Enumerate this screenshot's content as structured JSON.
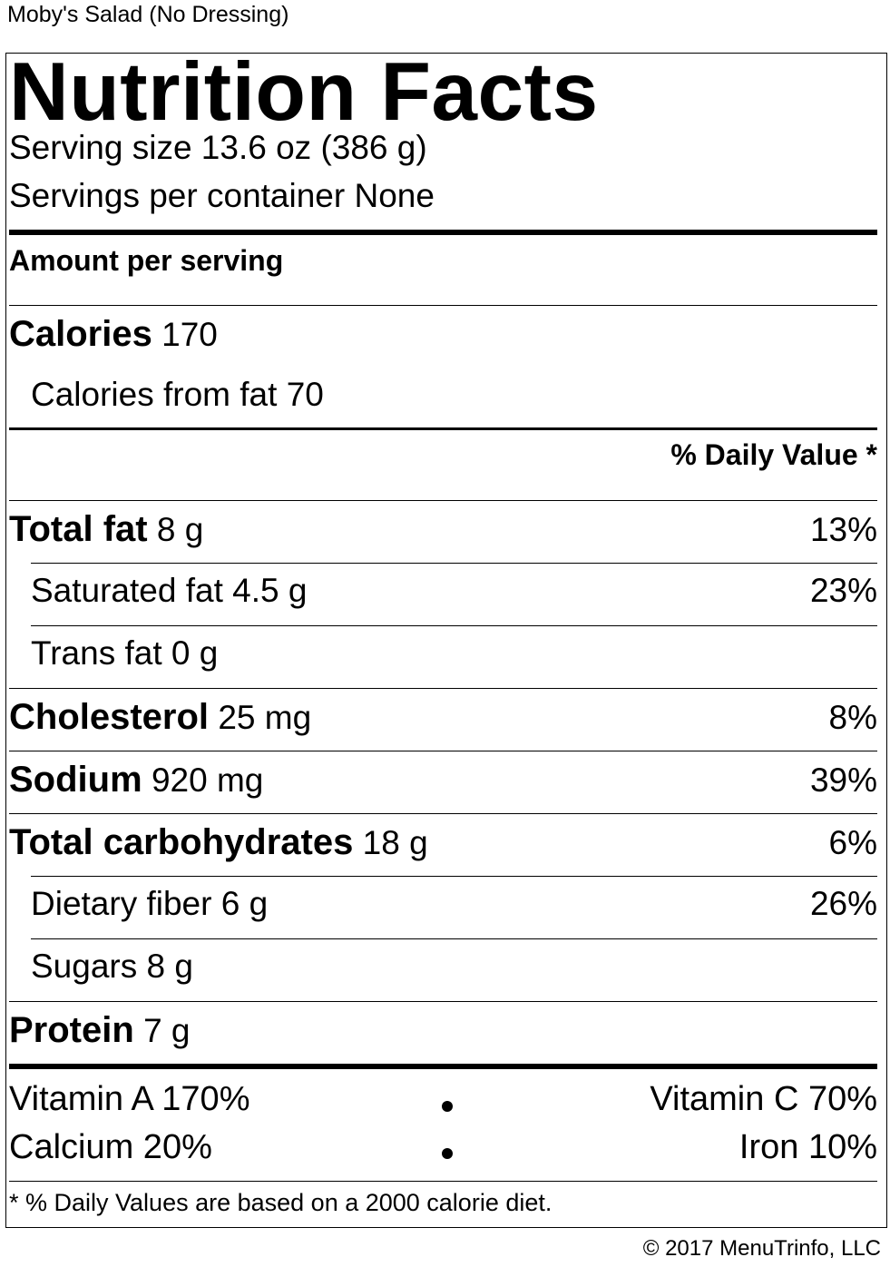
{
  "item_name": "Moby's Salad (No Dressing)",
  "title": "Nutrition Facts",
  "serving_size": "Serving size 13.6 oz (386 g)",
  "servings_per_container": "Servings per container None",
  "amount_per_serving": "Amount per serving",
  "calories": {
    "label": "Calories",
    "value": "170"
  },
  "calories_from_fat": "Calories from fat 70",
  "daily_value_header": "% Daily Value *",
  "nutrients": {
    "total_fat": {
      "label": "Total fat",
      "amount": "8 g",
      "dv": "13%"
    },
    "saturated_fat": {
      "label": "Saturated fat 4.5 g",
      "dv": "23%"
    },
    "trans_fat": {
      "label": "Trans fat 0 g"
    },
    "cholesterol": {
      "label": "Cholesterol",
      "amount": "25 mg",
      "dv": "8%"
    },
    "sodium": {
      "label": "Sodium",
      "amount": "920 mg",
      "dv": "39%"
    },
    "total_carbohydrates": {
      "label": "Total carbohydrates",
      "amount": "18 g",
      "dv": "6%"
    },
    "dietary_fiber": {
      "label": "Dietary fiber 6 g",
      "dv": "26%"
    },
    "sugars": {
      "label": "Sugars 8 g"
    },
    "protein": {
      "label": "Protein",
      "amount": "7 g"
    }
  },
  "vitamins": {
    "vitamin_a": "Vitamin A 170%",
    "vitamin_c": "Vitamin C 70%",
    "calcium": "Calcium 20%",
    "iron": "Iron 10%"
  },
  "footnote": "* % Daily Values are based on a 2000 calorie diet.",
  "copyright": "© 2017 MenuTrinfo, LLC"
}
